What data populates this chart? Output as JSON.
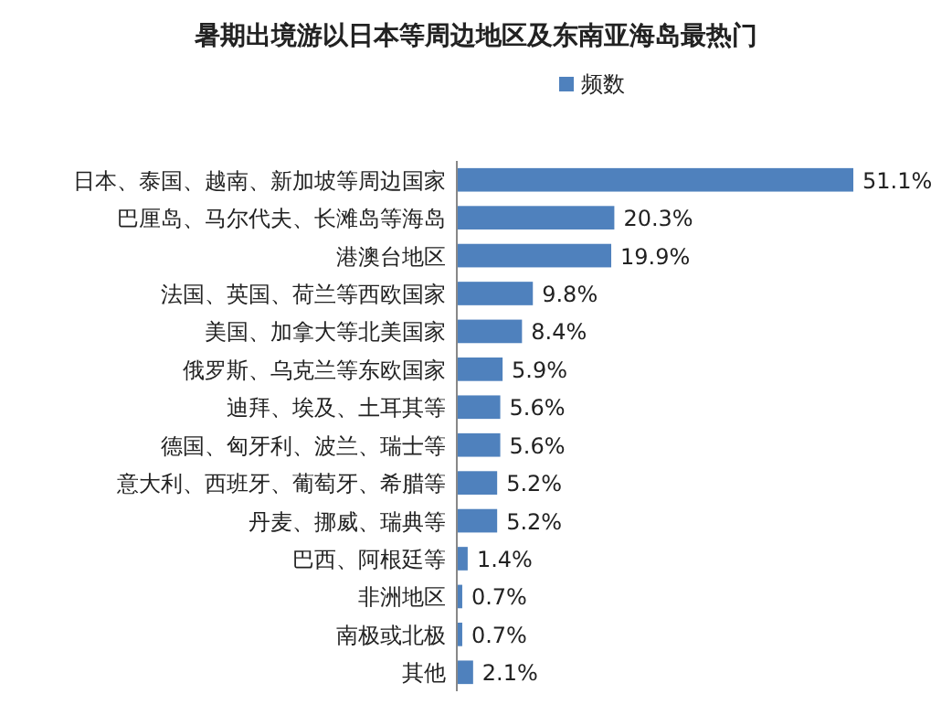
{
  "chart_data": {
    "type": "bar",
    "orientation": "horizontal",
    "title": "暑期出境游以日本等周边地区及东南亚海岛最热门",
    "legend": "top",
    "categories": [
      "日本、泰国、越南、新加坡等周边国家",
      "巴厘岛、马尔代夫、长滩岛等海岛",
      "港澳台地区",
      "法国、英国、荷兰等西欧国家",
      "美国、加拿大等北美国家",
      "俄罗斯、乌克兰等东欧国家",
      "迪拜、埃及、土耳其等",
      "德国、匈牙利、波兰、瑞士等",
      "意大利、西班牙、葡萄牙、希腊等",
      "丹麦、挪威、瑞典等",
      "巴西、阿根廷等",
      "非洲地区",
      "南极或北极",
      "其他"
    ],
    "series": [
      {
        "name": "频数",
        "color": "#4f81bd",
        "values": [
          51.1,
          20.3,
          19.9,
          9.8,
          8.4,
          5.9,
          5.6,
          5.6,
          5.2,
          5.2,
          1.4,
          0.7,
          0.7,
          2.1
        ],
        "value_labels": [
          "51.1%",
          "20.3%",
          "19.9%",
          "9.8%",
          "8.4%",
          "5.9%",
          "5.6%",
          "5.6%",
          "5.2%",
          "5.2%",
          "1.4%",
          "0.7%",
          "0.7%",
          "2.1%"
        ]
      }
    ]
  }
}
